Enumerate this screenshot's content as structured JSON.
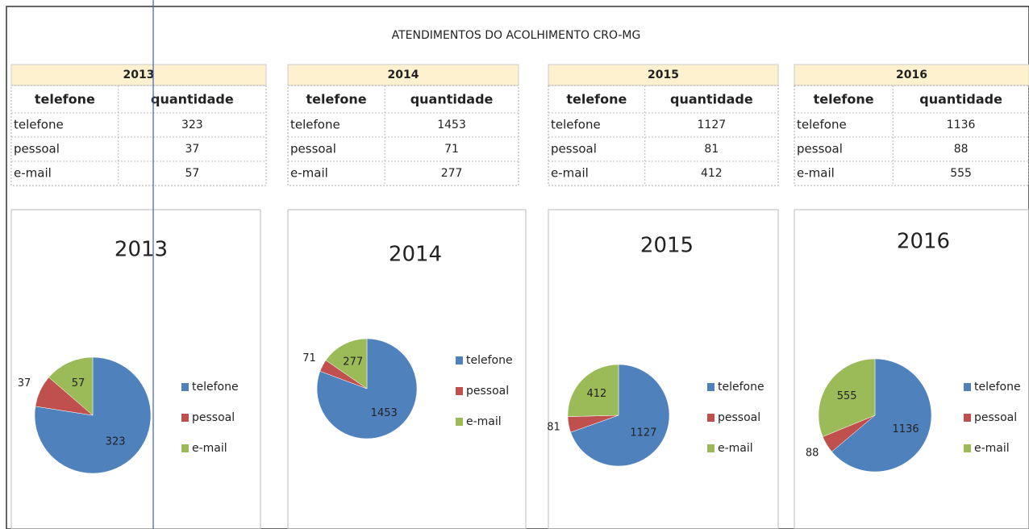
{
  "title": "ATENDIMENTOS DO ACOLHIMENTO CRO-MG",
  "tables": [
    {
      "year": "2013",
      "header": [
        "telefone",
        "quantidade"
      ],
      "rows": [
        [
          "telefone",
          323
        ],
        [
          "pessoal",
          37
        ],
        [
          "e-mail",
          57
        ]
      ]
    },
    {
      "year": "2014",
      "header": [
        "telefone",
        "quantidade"
      ],
      "rows": [
        [
          "telefone",
          1453
        ],
        [
          "pessoal",
          71
        ],
        [
          "e-mail",
          277
        ]
      ]
    },
    {
      "year": "2015",
      "header": [
        "telefone",
        "quantidade"
      ],
      "rows": [
        [
          "telefone",
          1127
        ],
        [
          "pessoal",
          81
        ],
        [
          "e-mail",
          412
        ]
      ]
    },
    {
      "year": "2016",
      "header": [
        "telefone",
        "quantidade"
      ],
      "rows": [
        [
          "telefone",
          1136
        ],
        [
          "pessoal",
          88
        ],
        [
          "e-mail",
          555
        ]
      ]
    }
  ],
  "chart_data": [
    {
      "type": "pie",
      "title": "2013",
      "categories": [
        "telefone",
        "pessoal",
        "e-mail"
      ],
      "values": [
        323,
        37,
        57
      ],
      "colors": [
        "#4f81bd",
        "#c0504d",
        "#9bbb59"
      ]
    },
    {
      "type": "pie",
      "title": "2014",
      "categories": [
        "telefone",
        "pessoal",
        "e-mail"
      ],
      "values": [
        1453,
        71,
        277
      ],
      "colors": [
        "#4f81bd",
        "#c0504d",
        "#9bbb59"
      ]
    },
    {
      "type": "pie",
      "title": "2015",
      "categories": [
        "telefone",
        "pessoal",
        "e-mail"
      ],
      "values": [
        1127,
        81,
        412
      ],
      "colors": [
        "#4f81bd",
        "#c0504d",
        "#9bbb59"
      ]
    },
    {
      "type": "pie",
      "title": "2016",
      "categories": [
        "telefone",
        "pessoal",
        "e-mail"
      ],
      "values": [
        1136,
        88,
        555
      ],
      "colors": [
        "#4f81bd",
        "#c0504d",
        "#9bbb59"
      ]
    }
  ]
}
